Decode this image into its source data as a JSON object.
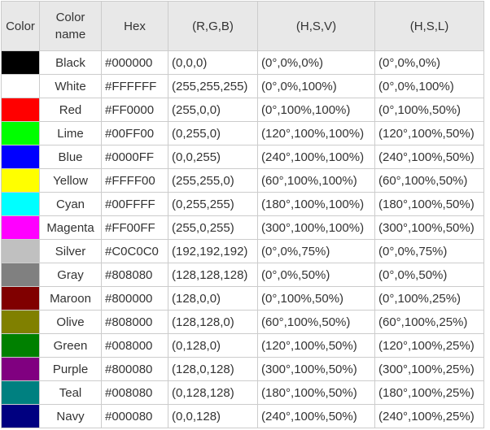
{
  "headers": [
    "Color",
    "Color\nname",
    "Hex",
    "(R,G,B)",
    "(H,S,V)",
    "(H,S,L)"
  ],
  "rows": [
    {
      "swatch": "#000000",
      "name": "Black",
      "hex": "#000000",
      "rgb": "(0,0,0)",
      "hsv": "(0°,0%,0%)",
      "hsl": "(0°,0%,0%)"
    },
    {
      "swatch": "#FFFFFF",
      "name": "White",
      "hex": "#FFFFFF",
      "rgb": "(255,255,255)",
      "hsv": "(0°,0%,100%)",
      "hsl": "(0°,0%,100%)"
    },
    {
      "swatch": "#FF0000",
      "name": "Red",
      "hex": "#FF0000",
      "rgb": "(255,0,0)",
      "hsv": "(0°,100%,100%)",
      "hsl": "(0°,100%,50%)"
    },
    {
      "swatch": "#00FF00",
      "name": "Lime",
      "hex": "#00FF00",
      "rgb": "(0,255,0)",
      "hsv": "(120°,100%,100%)",
      "hsl": "(120°,100%,50%)"
    },
    {
      "swatch": "#0000FF",
      "name": "Blue",
      "hex": "#0000FF",
      "rgb": "(0,0,255)",
      "hsv": "(240°,100%,100%)",
      "hsl": "(240°,100%,50%)"
    },
    {
      "swatch": "#FFFF00",
      "name": "Yellow",
      "hex": "#FFFF00",
      "rgb": "(255,255,0)",
      "hsv": "(60°,100%,100%)",
      "hsl": "(60°,100%,50%)"
    },
    {
      "swatch": "#00FFFF",
      "name": "Cyan",
      "hex": "#00FFFF",
      "rgb": "(0,255,255)",
      "hsv": "(180°,100%,100%)",
      "hsl": "(180°,100%,50%)"
    },
    {
      "swatch": "#FF00FF",
      "name": "Magenta",
      "hex": "#FF00FF",
      "rgb": "(255,0,255)",
      "hsv": "(300°,100%,100%)",
      "hsl": "(300°,100%,50%)"
    },
    {
      "swatch": "#C0C0C0",
      "name": "Silver",
      "hex": "#C0C0C0",
      "rgb": "(192,192,192)",
      "hsv": "(0°,0%,75%)",
      "hsl": "(0°,0%,75%)"
    },
    {
      "swatch": "#808080",
      "name": "Gray",
      "hex": "#808080",
      "rgb": "(128,128,128)",
      "hsv": "(0°,0%,50%)",
      "hsl": "(0°,0%,50%)"
    },
    {
      "swatch": "#800000",
      "name": "Maroon",
      "hex": "#800000",
      "rgb": "(128,0,0)",
      "hsv": "(0°,100%,50%)",
      "hsl": "(0°,100%,25%)"
    },
    {
      "swatch": "#808000",
      "name": "Olive",
      "hex": "#808000",
      "rgb": "(128,128,0)",
      "hsv": "(60°,100%,50%)",
      "hsl": "(60°,100%,25%)"
    },
    {
      "swatch": "#008000",
      "name": "Green",
      "hex": "#008000",
      "rgb": "(0,128,0)",
      "hsv": "(120°,100%,50%)",
      "hsl": "(120°,100%,25%)"
    },
    {
      "swatch": "#800080",
      "name": "Purple",
      "hex": "#800080",
      "rgb": "(128,0,128)",
      "hsv": "(300°,100%,50%)",
      "hsl": "(300°,100%,25%)"
    },
    {
      "swatch": "#008080",
      "name": "Teal",
      "hex": "#008080",
      "rgb": "(0,128,128)",
      "hsv": "(180°,100%,50%)",
      "hsl": "(180°,100%,25%)"
    },
    {
      "swatch": "#000080",
      "name": "Navy",
      "hex": "#000080",
      "rgb": "(0,0,128)",
      "hsv": "(240°,100%,50%)",
      "hsl": "(240°,100%,25%)"
    }
  ]
}
